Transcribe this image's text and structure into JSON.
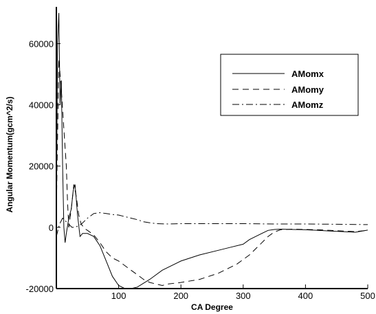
{
  "chart_data": {
    "type": "line",
    "title": "",
    "xlabel": "CA Degree",
    "ylabel": "Angular Momentum(gcm^2/s)",
    "xlim": [
      0,
      500
    ],
    "ylim": [
      -20000,
      72000
    ],
    "x_ticks": [
      100,
      200,
      300,
      400,
      500
    ],
    "y_ticks": [
      -20000,
      0,
      20000,
      40000,
      60000
    ],
    "x_tick_labels": [
      "100",
      "200",
      "300",
      "400",
      "500"
    ],
    "y_tick_labels": [
      "-20000",
      "0",
      "20000",
      "40000",
      "60000"
    ],
    "grid": false,
    "legend_position": "top-right",
    "series": [
      {
        "name": "AMomx",
        "dash": "solid",
        "x": [
          0,
          2,
          4,
          6,
          8,
          10,
          12,
          14,
          16,
          20,
          24,
          27,
          30,
          34,
          38,
          42,
          50,
          60,
          70,
          80,
          90,
          100,
          110,
          120,
          130,
          150,
          170,
          200,
          230,
          260,
          280,
          300,
          310,
          320,
          340,
          350,
          360,
          380,
          400,
          420,
          440,
          460,
          480,
          500
        ],
        "y": [
          5000,
          60000,
          70000,
          40000,
          48000,
          20000,
          0,
          -5000,
          -2000,
          3000,
          6000,
          12000,
          14000,
          4000,
          -3000,
          -2000,
          -2000,
          -3000,
          -6000,
          -11000,
          -16000,
          -19000,
          -20000,
          -20000,
          -19500,
          -17000,
          -14000,
          -11000,
          -9000,
          -7500,
          -6500,
          -5500,
          -4000,
          -3000,
          -1000,
          -700,
          -600,
          -700,
          -800,
          -1000,
          -1200,
          -1400,
          -1600,
          -900
        ]
      },
      {
        "name": "AMomy",
        "dash": "dashed",
        "x": [
          0,
          4,
          8,
          12,
          16,
          18,
          20,
          24,
          28,
          32,
          36,
          40,
          46,
          50,
          60,
          70,
          80,
          90,
          100,
          110,
          120,
          130,
          140,
          150,
          160,
          170,
          180,
          200,
          230,
          260,
          290,
          310,
          330,
          340,
          350,
          360,
          380,
          400,
          420,
          440,
          460,
          480,
          500
        ],
        "y": [
          5000,
          55000,
          45000,
          32000,
          20000,
          8000,
          0,
          6000,
          14000,
          10000,
          4000,
          1000,
          -500,
          -1000,
          -2500,
          -5000,
          -8000,
          -10000,
          -11000,
          -12500,
          -14000,
          -15500,
          -17000,
          -18000,
          -18500,
          -19000,
          -18500,
          -18000,
          -17000,
          -15000,
          -12000,
          -9000,
          -5000,
          -3000,
          -1500,
          -800,
          -600,
          -700,
          -800,
          -1000,
          -1200,
          -1400,
          -1000
        ]
      },
      {
        "name": "AMomz",
        "dash": "dashdot",
        "x": [
          0,
          5,
          10,
          15,
          20,
          25,
          30,
          40,
          50,
          60,
          70,
          80,
          90,
          100,
          110,
          120,
          130,
          140,
          150,
          160,
          180,
          200,
          250,
          300,
          350,
          400,
          450,
          500
        ],
        "y": [
          -3000,
          1000,
          3000,
          2000,
          1000,
          0,
          0,
          1000,
          3000,
          4500,
          4800,
          4500,
          4200,
          4000,
          3500,
          3000,
          2500,
          1800,
          1500,
          1200,
          1100,
          1200,
          1200,
          1200,
          1100,
          1100,
          1000,
          900
        ]
      }
    ]
  }
}
